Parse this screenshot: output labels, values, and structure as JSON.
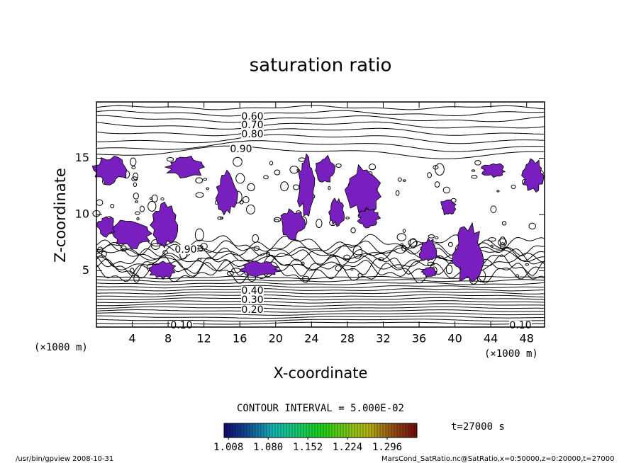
{
  "chart_data": {
    "type": "contour",
    "title": "saturation ratio",
    "xlabel": "X-coordinate",
    "ylabel": "Z-coordinate",
    "x_unit": "(×1000 m)",
    "xlim": [
      0,
      50
    ],
    "xticks": [
      4,
      8,
      12,
      16,
      20,
      24,
      28,
      32,
      36,
      40,
      44,
      48
    ],
    "ylim": [
      0,
      20
    ],
    "yticks": [
      5,
      10,
      15
    ],
    "contour_labels": [
      {
        "value": 0.6,
        "label": "0.60"
      },
      {
        "value": 0.7,
        "label": "0.70"
      },
      {
        "value": 0.8,
        "label": "0.80"
      },
      {
        "value": 0.9,
        "label": "0.90"
      },
      {
        "value": 0.9,
        "label": "0.90"
      },
      {
        "value": 0.4,
        "label": "0.40"
      },
      {
        "value": 0.3,
        "label": "0.30"
      },
      {
        "value": 0.2,
        "label": "0.20"
      },
      {
        "value": 0.1,
        "label": "0.10"
      },
      {
        "value": 0.1,
        "label": "0.10"
      }
    ],
    "contour_interval_text": "CONTOUR INTERVAL = 5.000E-02",
    "shade_color": "#7a1fbf",
    "clim": [
      1.0,
      1.35
    ],
    "cticks": [
      {
        "value": 1.008,
        "label": "1.008"
      },
      {
        "value": 1.08,
        "label": "1.080"
      },
      {
        "value": 1.152,
        "label": "1.152"
      },
      {
        "value": 1.224,
        "label": "1.224"
      },
      {
        "value": 1.296,
        "label": "1.296"
      }
    ],
    "time_label": "t=27000 s",
    "footer_left": "/usr/bin/gpview   2008-10-31",
    "footer_right": "MarsCond_SatRatio.nc@SatRatio,x=0:50000,z=0:20000,t=27000"
  }
}
